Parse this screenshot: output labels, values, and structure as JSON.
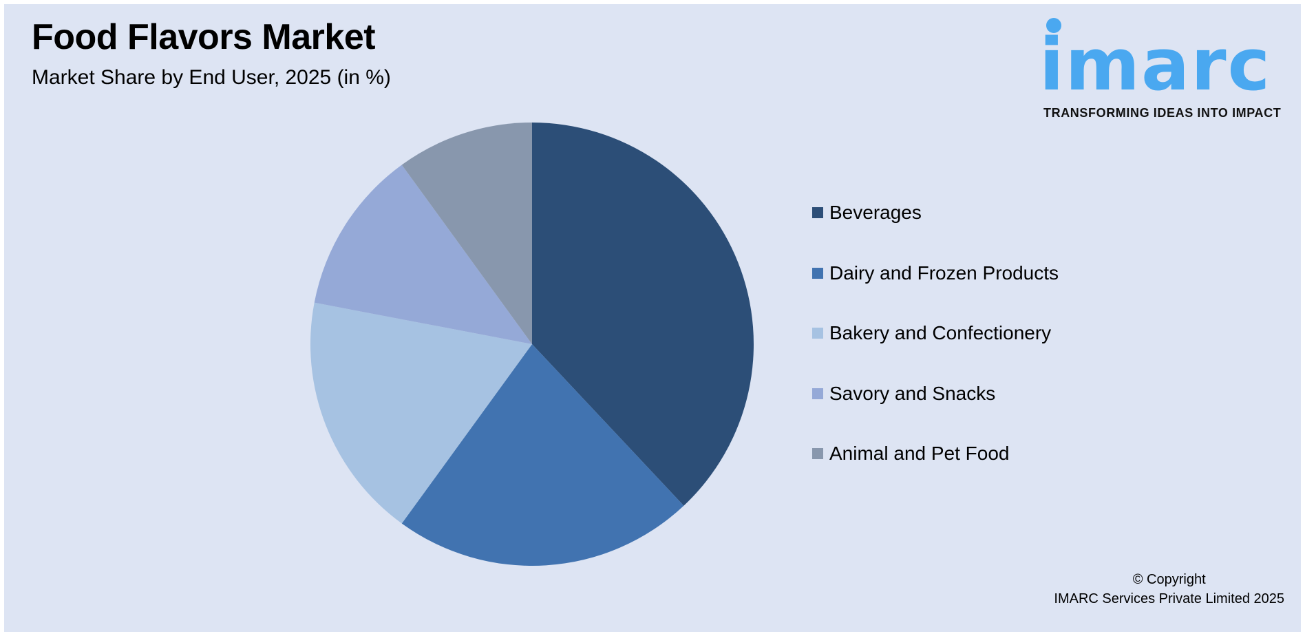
{
  "header": {
    "title": "Food Flavors Market",
    "subtitle": "Market Share by End User, 2025 (in %)"
  },
  "logo": {
    "wordmark": "imarc",
    "tagline": "TRANSFORMING IDEAS INTO IMPACT",
    "color": "#4aa8f0"
  },
  "legend": {
    "items": [
      {
        "label": "Beverages",
        "color": "#2c4e77"
      },
      {
        "label": "Dairy and Frozen Products",
        "color": "#4173b0"
      },
      {
        "label": "Bakery and Confectionery",
        "color": "#a6c2e2"
      },
      {
        "label": "Savory and Snacks",
        "color": "#95a9d7"
      },
      {
        "label": "Animal and Pet Food",
        "color": "#8897ad"
      }
    ]
  },
  "footer": {
    "copyright_line1": "© Copyright",
    "copyright_line2": "IMARC Services Private Limited 2025"
  },
  "chart_data": {
    "type": "pie",
    "title": "Food Flavors Market",
    "subtitle": "Market Share by End User, 2025 (in %)",
    "categories": [
      "Beverages",
      "Dairy and Frozen Products",
      "Bakery and Confectionery",
      "Savory and Snacks",
      "Animal and Pet Food"
    ],
    "values": [
      38,
      22,
      18,
      12,
      10
    ],
    "colors": [
      "#2c4e77",
      "#4173b0",
      "#a6c2e2",
      "#95a9d7",
      "#8897ad"
    ],
    "start_angle": "12 o'clock, clockwise",
    "data_labels": false,
    "legend_position": "right"
  }
}
